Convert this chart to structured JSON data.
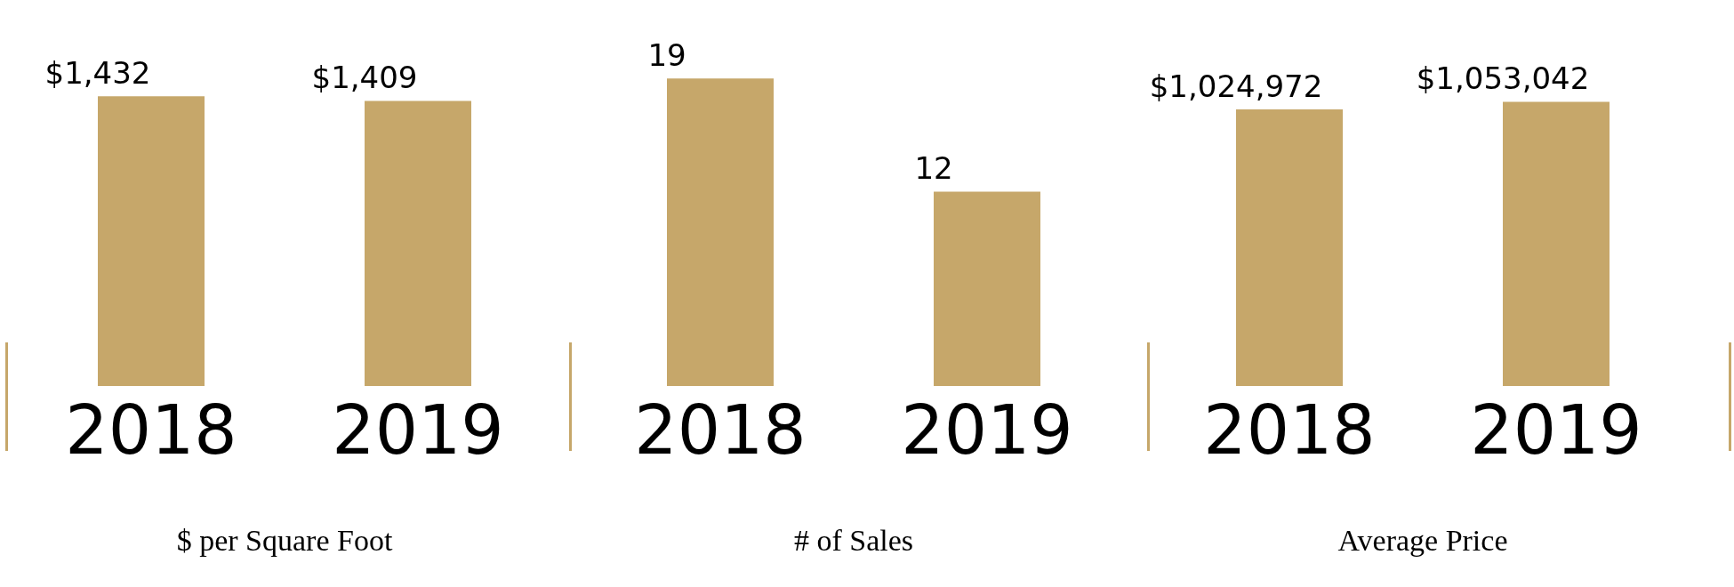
{
  "chart_data": [
    {
      "type": "bar",
      "title": "$ per Square Foot",
      "categories": [
        "2018",
        "2019"
      ],
      "values": [
        1432,
        1409
      ],
      "value_labels": [
        "$1,432",
        "$1,409"
      ],
      "color": "#c6a76a",
      "tick_labels": "x"
    },
    {
      "type": "bar",
      "title": "# of Sales",
      "categories": [
        "2018",
        "2019"
      ],
      "values": [
        19,
        12
      ],
      "value_labels": [
        "19",
        "12"
      ],
      "color": "#c6a76a",
      "tick_labels": "x"
    },
    {
      "type": "bar",
      "title": "Average Price",
      "categories": [
        "2018",
        "2019"
      ],
      "values": [
        1024972,
        1053042
      ],
      "value_labels": [
        "$1,024,972",
        "$1,053,042"
      ],
      "color": "#c6a76a",
      "tick_labels": "x"
    }
  ]
}
